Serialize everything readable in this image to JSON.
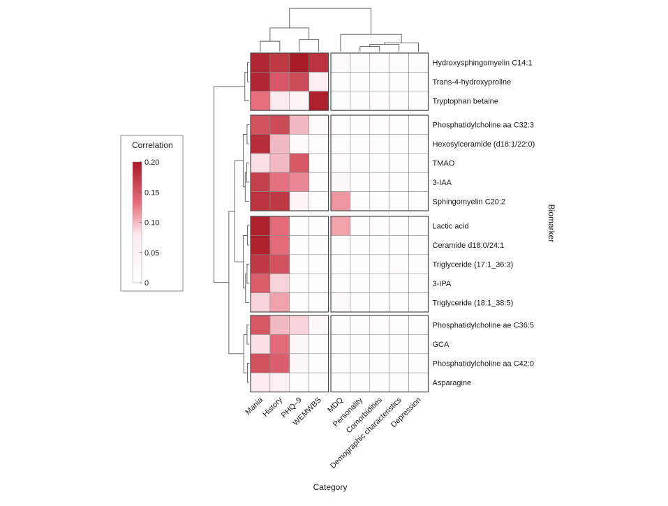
{
  "chart_data": {
    "type": "heatmap",
    "xlabel": "Category",
    "ylabel": "Biomarker",
    "colorbar": {
      "title": "Correlation",
      "min": 0,
      "max": 0.2,
      "ticks": [
        "0",
        "0.05",
        "0.10",
        "0.15",
        "0.20"
      ],
      "tick_values": [
        0,
        0.05,
        0.1,
        0.15,
        0.2
      ],
      "colors": [
        "#ffffff",
        "#fbeaf0",
        "#e7707e",
        "#a81a26"
      ]
    },
    "columns": [
      "Mania",
      "History",
      "PHQ–9",
      "WEMWBS",
      "MDQ",
      "Personality",
      "Comorbidities",
      "Demographic characteristics",
      "Depression"
    ],
    "column_groups": [
      4,
      5
    ],
    "rows": [
      "Hydroxysphingomyelin C14:1",
      "Trans-4-hydroxyproline",
      "Tryptophan betaine",
      "Phosphatidylcholine aa C32:3",
      "Hexosylceramide (d18:1/22:0)",
      "TMAO",
      "3-IAA",
      "Sphingomyelin C20:2",
      "Lactic acid",
      "Ceramide d18:0/24:1",
      "Triglyceride (17:1_36:3)",
      "3-IPA",
      "Triglyceride (18:1_38:5)",
      "Phosphatidylcholine ae C36:5",
      "GCA",
      "Phosphatidylcholine aa C42:0",
      "Asparagine"
    ],
    "row_groups": [
      3,
      5,
      5,
      4
    ],
    "values": [
      [
        0.19,
        0.175,
        0.21,
        0.18,
        0.02,
        0.005,
        0.008,
        0.005,
        0.005
      ],
      [
        0.19,
        0.15,
        0.16,
        0.07,
        0.003,
        0.004,
        0.005,
        0.005,
        0.005
      ],
      [
        0.13,
        0.08,
        0.05,
        0.195,
        0.003,
        0.012,
        0.006,
        0.006,
        0.006
      ],
      [
        0.155,
        0.16,
        0.1,
        0.02,
        0.012,
        0.005,
        0.008,
        0.005,
        0.005
      ],
      [
        0.185,
        0.1,
        0.02,
        0.01,
        0.01,
        0.005,
        0.008,
        0.005,
        0.006
      ],
      [
        0.085,
        0.1,
        0.15,
        0.01,
        0.015,
        0.005,
        0.005,
        0.005,
        0.005
      ],
      [
        0.17,
        0.13,
        0.12,
        0.01,
        0.025,
        0.005,
        0.006,
        0.005,
        0.006
      ],
      [
        0.18,
        0.175,
        0.05,
        0.008,
        0.115,
        0.005,
        0.005,
        0.005,
        0.005
      ],
      [
        0.195,
        0.135,
        0.005,
        0.01,
        0.11,
        0.012,
        0.012,
        0.005,
        0.005
      ],
      [
        0.195,
        0.135,
        0.005,
        0.01,
        0.01,
        0.005,
        0.005,
        0.005,
        0.008
      ],
      [
        0.175,
        0.155,
        0.005,
        0.005,
        0.005,
        0.005,
        0.005,
        0.015,
        0.005
      ],
      [
        0.145,
        0.09,
        0.005,
        0.005,
        0.005,
        0.005,
        0.005,
        0.005,
        0.005
      ],
      [
        0.09,
        0.11,
        0.005,
        0.005,
        0.02,
        0.005,
        0.005,
        0.005,
        0.005
      ],
      [
        0.15,
        0.1,
        0.09,
        0.025,
        0.003,
        0.004,
        0.006,
        0.004,
        0.004
      ],
      [
        0.085,
        0.135,
        0.03,
        0.005,
        0.004,
        0.004,
        0.004,
        0.004,
        0.004
      ],
      [
        0.155,
        0.145,
        0.03,
        0.005,
        0.004,
        0.004,
        0.004,
        0.004,
        0.004
      ],
      [
        0.08,
        0.06,
        0.008,
        0.005,
        0.004,
        0.004,
        0.004,
        0.004,
        0.004
      ]
    ],
    "row_dendrogram": [
      [
        0,
        1,
        0.05
      ],
      [
        17,
        2,
        0.12
      ],
      [
        3,
        4,
        0.06
      ],
      [
        5,
        6,
        0.07
      ],
      [
        20,
        7,
        0.11
      ],
      [
        19,
        21,
        0.16
      ],
      [
        8,
        9,
        0.05
      ],
      [
        10,
        11,
        0.06
      ],
      [
        24,
        12,
        0.1
      ],
      [
        23,
        25,
        0.16
      ],
      [
        22,
        26,
        0.4
      ],
      [
        13,
        14,
        0.06
      ],
      [
        15,
        16,
        0.05
      ],
      [
        28,
        29,
        0.15
      ],
      [
        27,
        30,
        0.56
      ],
      [
        18,
        31,
        0.97
      ]
    ],
    "column_dendrogram": [
      [
        0,
        1,
        0.24
      ],
      [
        2,
        3,
        0.28
      ],
      [
        9,
        10,
        0.55
      ],
      [
        5,
        6,
        0.12
      ],
      [
        12,
        7,
        0.17
      ],
      [
        13,
        8,
        0.2
      ],
      [
        4,
        14,
        0.4
      ],
      [
        11,
        15,
        1.0
      ]
    ]
  }
}
